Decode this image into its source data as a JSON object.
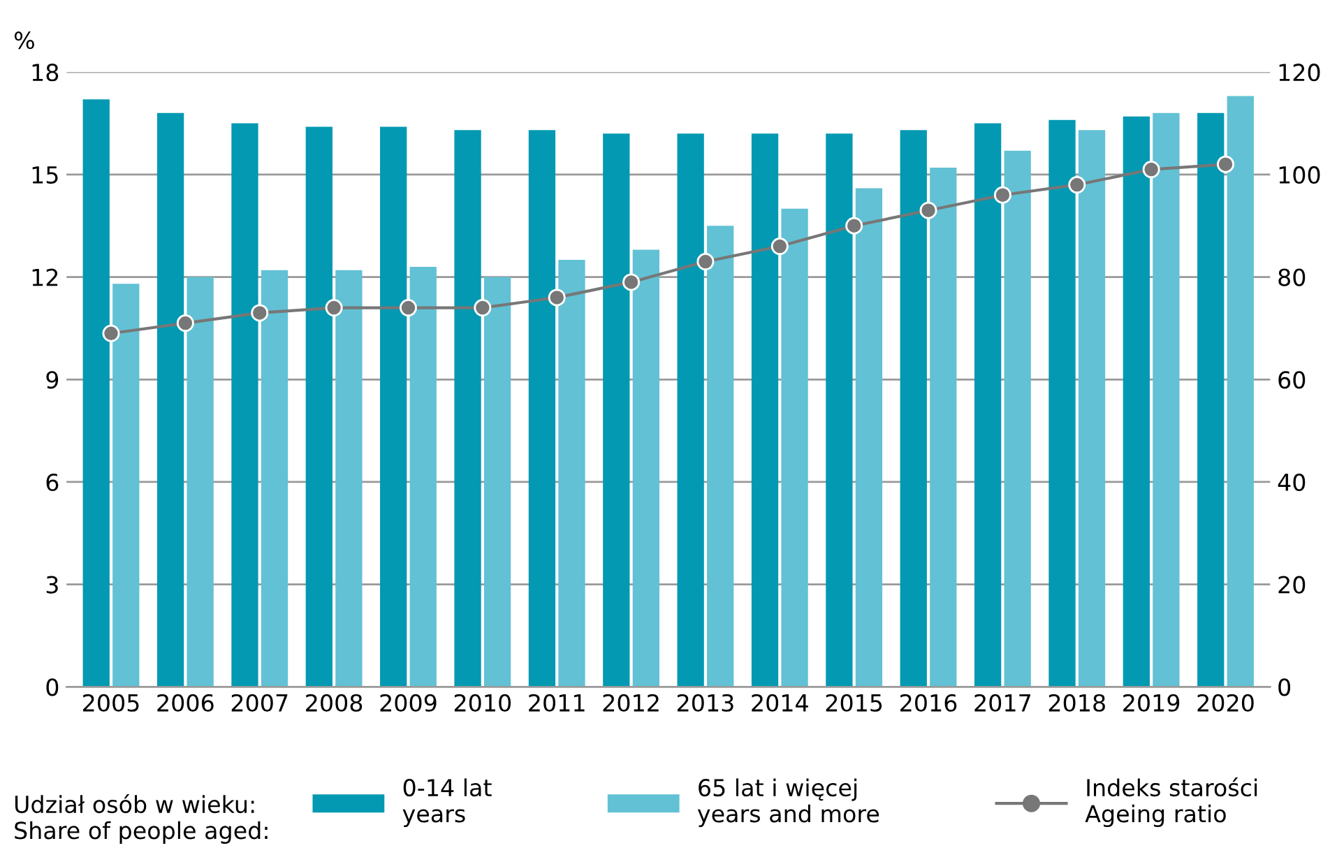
{
  "chart_data": {
    "type": "bar",
    "ylabel": "%",
    "legend_title": "Udział osób w wieku:\nShare of people aged:",
    "categories": [
      "2005",
      "2006",
      "2007",
      "2008",
      "2009",
      "2010",
      "2011",
      "2012",
      "2013",
      "2014",
      "2015",
      "2016",
      "2017",
      "2018",
      "2019",
      "2020"
    ],
    "series": [
      {
        "name": "0-14 lat\nyears",
        "color": "#0399b2",
        "values": [
          17.2,
          16.8,
          16.5,
          16.4,
          16.4,
          16.3,
          16.3,
          16.2,
          16.2,
          16.2,
          16.2,
          16.3,
          16.5,
          16.6,
          16.7,
          16.8
        ]
      },
      {
        "name": "65 lat i więcej\nyears and more",
        "color": "#62c1d4",
        "values": [
          11.8,
          12.0,
          12.2,
          12.2,
          12.3,
          12.0,
          12.5,
          12.8,
          13.5,
          14.0,
          14.6,
          15.2,
          15.7,
          16.3,
          16.8,
          17.3
        ]
      },
      {
        "name": "Indeks starości\nAgeing ratio",
        "type": "line",
        "axis": "y2",
        "color": "#777777",
        "marker": "circle",
        "values": [
          69,
          71,
          73,
          74,
          74,
          74,
          76,
          79,
          83,
          86,
          90,
          93,
          96,
          98,
          101,
          102
        ]
      }
    ],
    "ylim": [
      0,
      18
    ],
    "yticks": [
      0,
      3,
      6,
      9,
      12,
      15,
      18
    ],
    "y2lim": [
      0,
      120
    ],
    "y2ticks": [
      0,
      20,
      40,
      60,
      80,
      100,
      120
    ],
    "grid": "y",
    "legend": "bottom"
  }
}
